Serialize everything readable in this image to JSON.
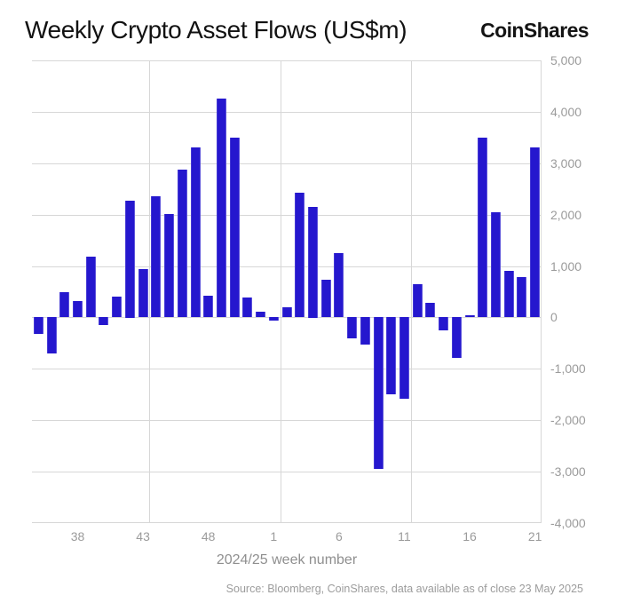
{
  "header": {
    "title": "Weekly Crypto Asset Flows (US$m)",
    "logo": "CoinShares"
  },
  "chart_data": {
    "type": "bar",
    "title": "Weekly Crypto Asset Flows (US$m)",
    "xlabel": "2024/25 week number",
    "ylabel": "",
    "ylim": [
      -4000,
      5000
    ],
    "grid": true,
    "legend": "none",
    "bar_color": "#2517CE",
    "yticks": [
      5000,
      4000,
      3000,
      2000,
      1000,
      0,
      -1000,
      -2000,
      -3000,
      -4000
    ],
    "ytick_labels": [
      "5,000",
      "4,000",
      "3,000",
      "2,000",
      "1,000",
      "0",
      "-1,000",
      "-2,000",
      "-3,000",
      "-4,000"
    ],
    "categories": [
      "35",
      "36",
      "37",
      "38",
      "39",
      "40",
      "41",
      "42",
      "43",
      "44",
      "45",
      "46",
      "47",
      "48",
      "49",
      "50",
      "51",
      "52",
      "1",
      "2",
      "3",
      "4",
      "5",
      "6",
      "7",
      "8",
      "9",
      "10",
      "11",
      "12",
      "13",
      "14",
      "15",
      "16",
      "17",
      "18",
      "19",
      "20",
      "21"
    ],
    "values": [
      -320,
      -700,
      490,
      320,
      1190,
      -150,
      400,
      2280,
      940,
      2350,
      2020,
      2880,
      3300,
      430,
      4260,
      3500,
      390,
      110,
      -70,
      190,
      2430,
      2150,
      740,
      1260,
      -410,
      -530,
      -2950,
      -1500,
      -1580,
      650,
      290,
      -250,
      -780,
      50,
      3490,
      2050,
      900,
      780,
      3300
    ],
    "xticks_shown": [
      "38",
      "43",
      "48",
      "1",
      "6",
      "11",
      "16",
      "21"
    ],
    "vgrid_after_weeks": [
      "43",
      "1",
      "11",
      "21"
    ]
  },
  "footer": {
    "source": "Source: Bloomberg, CoinShares, data available as of close 23 May 2025"
  }
}
